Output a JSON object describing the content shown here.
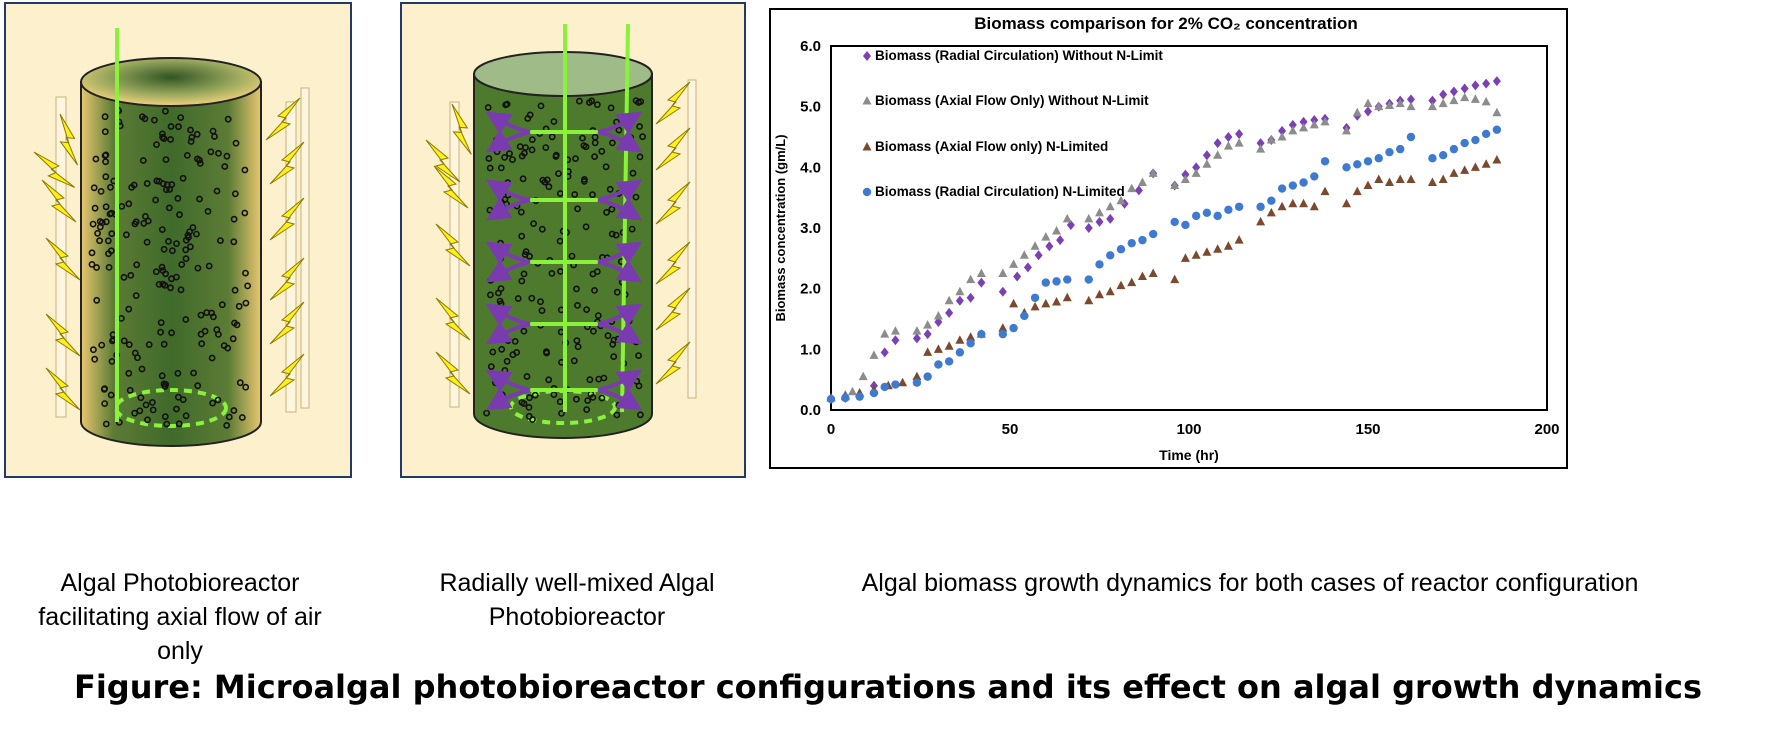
{
  "diagram_captions": {
    "panel1": "Algal Photobioreactor facilitating axial flow of air only",
    "panel2": "Radially well-mixed Algal Photobioreactor",
    "panel3": "Algal biomass growth dynamics for both cases of reactor configuration"
  },
  "figure_title": "Figure: Microalgal photobioreactor configurations and its effect on algal growth dynamics",
  "colors": {
    "panel_bg": "#fdf0cc",
    "reactor_green": "#4e7a2e",
    "air_line": "#8af23a",
    "lightning": "#ffef1a",
    "mixing_arrow": "#7a3bb0"
  },
  "chart_data": {
    "type": "scatter",
    "title": "Biomass comparison for 2% CO₂ concentration",
    "xlabel": "Time (hr)",
    "ylabel": "Biomass concentration (gm/L)",
    "xlim": [
      0,
      200
    ],
    "ylim": [
      0,
      6
    ],
    "xticks": [
      0,
      50,
      100,
      150,
      200
    ],
    "yticks": [
      0,
      1,
      2,
      3,
      4,
      5,
      6
    ],
    "ytick_labels": [
      "0.0",
      "1.0",
      "2.0",
      "3.0",
      "4.0",
      "5.0",
      "6.0"
    ],
    "grid": false,
    "legend_position": "top-left inside",
    "series": [
      {
        "name": "Biomass (Radial Circulation) Without N-Limit",
        "marker": "diamond",
        "color": "#7b3fb6",
        "x": [
          0,
          4,
          8,
          12,
          15,
          18,
          24,
          27,
          30,
          33,
          36,
          39,
          42,
          48,
          52,
          55,
          58,
          61,
          64,
          67,
          72,
          75,
          78,
          82,
          86,
          90,
          96,
          99,
          102,
          105,
          108,
          111,
          114,
          120,
          123,
          126,
          129,
          132,
          135,
          138,
          144,
          147,
          150,
          153,
          156,
          159,
          162,
          168,
          171,
          174,
          177,
          180,
          183,
          186
        ],
        "y": [
          0.18,
          0.2,
          0.24,
          0.4,
          0.95,
          1.15,
          1.18,
          1.25,
          1.45,
          1.6,
          1.8,
          1.85,
          2.1,
          1.95,
          2.2,
          2.35,
          2.55,
          2.7,
          2.8,
          3.05,
          3.0,
          3.1,
          3.15,
          3.4,
          3.62,
          3.9,
          3.7,
          3.88,
          4.0,
          4.2,
          4.4,
          4.5,
          4.55,
          4.4,
          4.45,
          4.6,
          4.7,
          4.75,
          4.78,
          4.8,
          4.65,
          4.85,
          4.92,
          5.0,
          5.05,
          5.1,
          5.12,
          5.1,
          5.2,
          5.25,
          5.3,
          5.35,
          5.38,
          5.42
        ]
      },
      {
        "name": "Biomass (Axial Flow Only) Without N-Limit",
        "marker": "triangle",
        "color": "#8c8c8c",
        "x": [
          0,
          4,
          6,
          9,
          12,
          15,
          18,
          24,
          27,
          30,
          33,
          36,
          39,
          42,
          48,
          51,
          54,
          57,
          60,
          63,
          66,
          72,
          75,
          78,
          81,
          84,
          87,
          90,
          96,
          99,
          102,
          105,
          108,
          111,
          114,
          120,
          123,
          126,
          129,
          132,
          135,
          138,
          144,
          147,
          150,
          153,
          156,
          159,
          162,
          168,
          171,
          174,
          177,
          180,
          183,
          186
        ],
        "y": [
          0.2,
          0.25,
          0.3,
          0.55,
          0.9,
          1.25,
          1.3,
          1.3,
          1.4,
          1.55,
          1.8,
          1.95,
          2.15,
          2.25,
          2.25,
          2.4,
          2.55,
          2.7,
          2.85,
          2.95,
          3.15,
          3.15,
          3.25,
          3.35,
          3.45,
          3.65,
          3.75,
          3.9,
          3.7,
          3.8,
          3.9,
          4.05,
          4.2,
          4.35,
          4.4,
          4.3,
          4.45,
          4.5,
          4.6,
          4.65,
          4.7,
          4.75,
          4.6,
          4.9,
          5.05,
          5.0,
          5.02,
          5.05,
          5.0,
          5.0,
          5.05,
          5.1,
          5.15,
          5.12,
          5.08,
          4.9
        ]
      },
      {
        "name": "Biomass (Axial Flow only) N-Limited",
        "marker": "triangle",
        "color": "#7b4a2e",
        "x": [
          0,
          4,
          8,
          12,
          16,
          20,
          24,
          27,
          30,
          33,
          36,
          39,
          42,
          48,
          51,
          54,
          57,
          60,
          63,
          66,
          72,
          75,
          78,
          81,
          84,
          87,
          90,
          96,
          99,
          102,
          105,
          108,
          111,
          114,
          120,
          123,
          126,
          129,
          132,
          135,
          138,
          144,
          147,
          150,
          153,
          156,
          159,
          162,
          168,
          171,
          174,
          177,
          180,
          183,
          186
        ],
        "y": [
          0.2,
          0.22,
          0.28,
          0.33,
          0.4,
          0.45,
          0.55,
          0.95,
          1.0,
          1.05,
          1.15,
          1.2,
          1.25,
          1.35,
          1.75,
          1.6,
          1.7,
          1.75,
          1.78,
          1.85,
          1.8,
          1.9,
          1.95,
          2.05,
          2.1,
          2.2,
          2.25,
          2.15,
          2.5,
          2.55,
          2.6,
          2.65,
          2.7,
          2.8,
          3.1,
          3.25,
          3.35,
          3.4,
          3.4,
          3.35,
          3.6,
          3.4,
          3.6,
          3.7,
          3.8,
          3.75,
          3.8,
          3.8,
          3.75,
          3.8,
          3.9,
          3.95,
          4.0,
          4.05,
          4.12
        ]
      },
      {
        "name": "Biomass (Radial Circulation) N-Limited",
        "marker": "circle",
        "color": "#3f7ad1",
        "x": [
          0,
          4,
          8,
          12,
          15,
          18,
          24,
          27,
          30,
          33,
          36,
          39,
          42,
          48,
          51,
          54,
          57,
          60,
          63,
          66,
          72,
          75,
          78,
          81,
          84,
          87,
          90,
          96,
          99,
          102,
          105,
          108,
          111,
          114,
          120,
          123,
          126,
          129,
          132,
          135,
          138,
          144,
          147,
          150,
          153,
          156,
          159,
          162,
          168,
          171,
          174,
          177,
          180,
          183,
          186
        ],
        "y": [
          0.18,
          0.2,
          0.22,
          0.28,
          0.38,
          0.42,
          0.45,
          0.55,
          0.75,
          0.8,
          0.95,
          1.1,
          1.25,
          1.25,
          1.35,
          1.55,
          1.85,
          2.1,
          2.12,
          2.15,
          2.15,
          2.4,
          2.55,
          2.65,
          2.75,
          2.8,
          2.9,
          3.1,
          3.05,
          3.2,
          3.25,
          3.2,
          3.3,
          3.35,
          3.35,
          3.45,
          3.65,
          3.7,
          3.75,
          3.85,
          4.1,
          4.0,
          4.05,
          4.1,
          4.15,
          4.25,
          4.3,
          4.5,
          4.15,
          4.2,
          4.3,
          4.4,
          4.45,
          4.55,
          4.62
        ]
      }
    ]
  }
}
